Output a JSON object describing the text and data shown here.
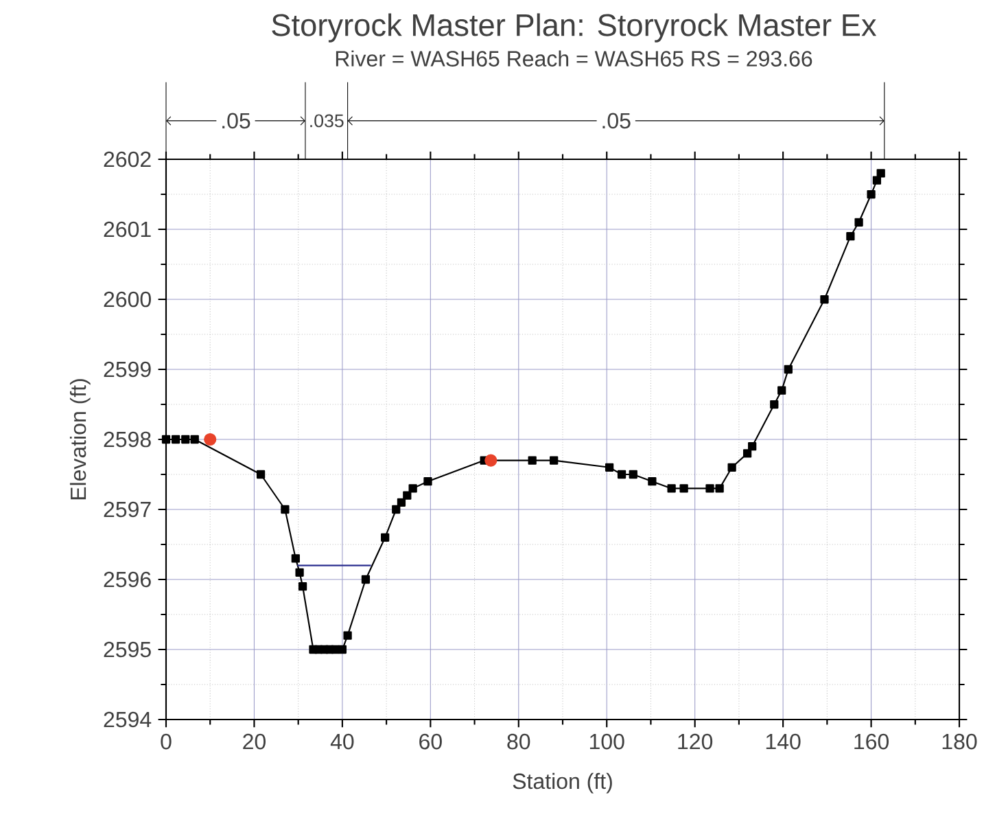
{
  "chart_data": {
    "type": "line",
    "title": "Storyrock Master      Plan: Storyrock Master Ex",
    "subtitle": "River = WASH65   Reach = WASH65      RS = 293.66",
    "xlabel": "Station (ft)",
    "ylabel": "Elevation (ft)",
    "xlim": [
      0,
      180
    ],
    "ylim": [
      2594,
      2602
    ],
    "xticks": [
      0,
      20,
      40,
      60,
      80,
      100,
      120,
      140,
      160,
      180
    ],
    "yticks": [
      2594,
      2595,
      2596,
      2597,
      2598,
      2599,
      2600,
      2601,
      2602
    ],
    "grid": true,
    "annotations": [
      ".05",
      ".035",
      ".05"
    ],
    "series": [
      {
        "color": "#000000",
        "marker": "square",
        "x": [
          0,
          2.2,
          4.4,
          6.5,
          21.5,
          27,
          29.4,
          30.3,
          31,
          33.4,
          34.6,
          35.9,
          37.1,
          38.4,
          40,
          41.2,
          45.3,
          49.7,
          52.2,
          53.4,
          54.7,
          56,
          59.4,
          72.2,
          83.1,
          88,
          100.6,
          103.4,
          106,
          110.3,
          114.7,
          117.5,
          123.4,
          125.6,
          128.4,
          131.9,
          133,
          138,
          139.7,
          141.2,
          149.4,
          155.3,
          157.2,
          160,
          161.3,
          162.2
        ],
        "values": [
          2598.0,
          2598.0,
          2598.0,
          2598.0,
          2597.5,
          2597.0,
          2596.3,
          2596.1,
          2595.9,
          2595.0,
          2595.0,
          2595.0,
          2595.0,
          2595.0,
          2595.0,
          2595.2,
          2596.0,
          2596.6,
          2597.0,
          2597.1,
          2597.2,
          2597.3,
          2597.4,
          2597.7,
          2597.7,
          2597.7,
          2597.6,
          2597.5,
          2597.5,
          2597.4,
          2597.3,
          2597.3,
          2597.3,
          2597.3,
          2597.6,
          2597.8,
          2597.9,
          2598.5,
          2598.7,
          2599.0,
          2600.0,
          2600.9,
          2601.1,
          2601.5,
          2601.7,
          2601.8
        ]
      },
      {
        "type": "scatter",
        "color": "#e8432a",
        "marker": "circle",
        "x": [
          10,
          73.7
        ],
        "values": [
          2598.0,
          2597.7
        ]
      },
      {
        "type": "line",
        "color": "#2b2f8f",
        "marker": "none",
        "x": [
          29.8,
          46.5
        ],
        "values": [
          2596.2,
          2596.2
        ]
      }
    ]
  }
}
